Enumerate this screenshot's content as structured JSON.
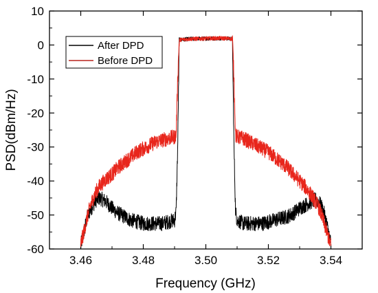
{
  "chart_data": {
    "type": "line",
    "title": "",
    "xlabel": "Frequency (GHz)",
    "ylabel": "PSD(dBm/Hz)",
    "xlim": [
      3.45,
      3.55
    ],
    "ylim": [
      -60,
      10
    ],
    "xticks": [
      3.46,
      3.48,
      3.5,
      3.52,
      3.54
    ],
    "xtick_labels": [
      "3.46",
      "3.48",
      "3.50",
      "3.52",
      "3.54"
    ],
    "yticks": [
      -60,
      -50,
      -40,
      -30,
      -20,
      -10,
      0,
      10
    ],
    "ytick_labels": [
      "-60",
      "-50",
      "-40",
      "-30",
      "-20",
      "-10",
      "0",
      "10"
    ],
    "grid": false,
    "legend_position": "top-left",
    "series": [
      {
        "name": "After DPD",
        "color": "#000000",
        "x": [
          3.46,
          3.461,
          3.462,
          3.463,
          3.464,
          3.465,
          3.466,
          3.468,
          3.47,
          3.472,
          3.474,
          3.476,
          3.478,
          3.48,
          3.482,
          3.484,
          3.486,
          3.488,
          3.49,
          3.4905,
          3.491,
          3.4915,
          3.495,
          3.5,
          3.505,
          3.5085,
          3.509,
          3.5095,
          3.51,
          3.512,
          3.514,
          3.516,
          3.518,
          3.52,
          3.522,
          3.524,
          3.526,
          3.528,
          3.53,
          3.532,
          3.534,
          3.535,
          3.536,
          3.537,
          3.538,
          3.539,
          3.54
        ],
        "y": [
          -59,
          -55,
          -51,
          -48.5,
          -47,
          -45.5,
          -45,
          -46,
          -48,
          -49.5,
          -50.5,
          -51.5,
          -52,
          -52.5,
          -52.5,
          -52.5,
          -52.5,
          -52,
          -51.5,
          -49,
          -30,
          1.5,
          1.8,
          1.9,
          2.0,
          1.8,
          -30,
          -49,
          -51.5,
          -52.5,
          -52.5,
          -52.5,
          -52.5,
          -52,
          -51.5,
          -51,
          -50.5,
          -49.5,
          -48,
          -47,
          -46,
          -45.5,
          -46,
          -47.5,
          -50,
          -54,
          -58.5
        ]
      },
      {
        "name": "Before DPD",
        "color": "#e8261c",
        "x": [
          3.46,
          3.461,
          3.462,
          3.463,
          3.464,
          3.465,
          3.466,
          3.468,
          3.47,
          3.472,
          3.474,
          3.476,
          3.478,
          3.48,
          3.482,
          3.484,
          3.486,
          3.488,
          3.49,
          3.4905,
          3.491,
          3.4915,
          3.495,
          3.5,
          3.505,
          3.5085,
          3.509,
          3.5095,
          3.51,
          3.512,
          3.514,
          3.516,
          3.518,
          3.52,
          3.522,
          3.524,
          3.526,
          3.528,
          3.53,
          3.532,
          3.534,
          3.536,
          3.537,
          3.538,
          3.539,
          3.54
        ],
        "y": [
          -58.5,
          -55,
          -51,
          -47.5,
          -45,
          -43,
          -41.5,
          -39.5,
          -38,
          -36,
          -34.5,
          -33,
          -31.5,
          -30.5,
          -29.5,
          -28.5,
          -28,
          -27.5,
          -27,
          -26.5,
          -10,
          1.5,
          1.8,
          1.9,
          2.0,
          1.8,
          -10,
          -26.5,
          -27,
          -27.5,
          -28.5,
          -29.5,
          -30.5,
          -31.5,
          -33,
          -34.5,
          -36,
          -38,
          -40,
          -42,
          -44.5,
          -47.5,
          -50,
          -53,
          -56,
          -59
        ]
      }
    ]
  }
}
